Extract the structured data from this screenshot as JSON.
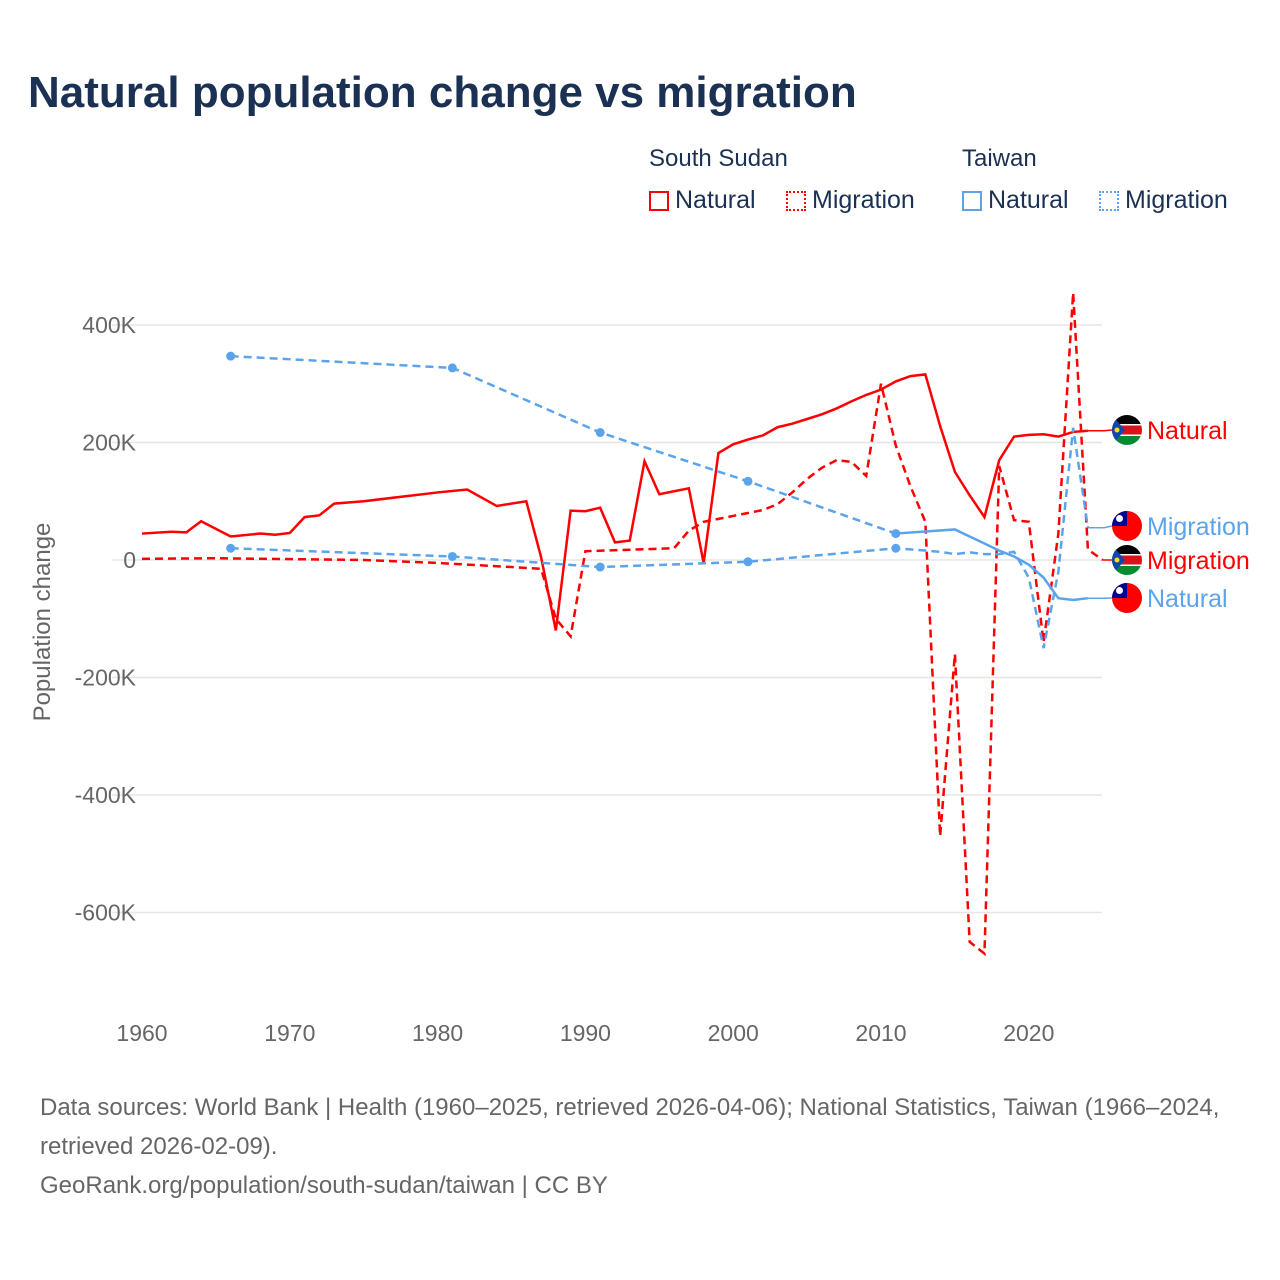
{
  "title": "Natural population change vs migration",
  "legend": {
    "groups": [
      {
        "name": "South Sudan",
        "color": "#ff0000",
        "items": [
          "Natural",
          "Migration"
        ]
      },
      {
        "name": "Taiwan",
        "color": "#5ba4ec",
        "items": [
          "Natural",
          "Migration"
        ]
      }
    ]
  },
  "footer": {
    "line1": "Data sources: World Bank | Health (1960–2025, retrieved 2026-04-06); National Statistics, Taiwan (1966–2024, retrieved 2026-02-09).",
    "line2": "GeoRank.org/population/south-sudan/taiwan | CC BY"
  },
  "chart_data": {
    "type": "line",
    "title": "Natural population change vs migration",
    "xlabel": "",
    "ylabel": "Population change",
    "xlim": [
      1960,
      2025
    ],
    "ylim": [
      -700000,
      460000
    ],
    "x_ticks": [
      "1960",
      "1970",
      "1980",
      "1990",
      "2000",
      "2010",
      "2020"
    ],
    "y_ticks": [
      {
        "v": 400000,
        "label": "400K"
      },
      {
        "v": 200000,
        "label": "200K"
      },
      {
        "v": 0,
        "label": "0"
      },
      {
        "v": -200000,
        "label": "-200K"
      },
      {
        "v": -400000,
        "label": "-400K"
      },
      {
        "v": -600000,
        "label": "-600K"
      }
    ],
    "grid": true,
    "legend_placement": "top-right",
    "series": [
      {
        "name": "South Sudan Natural",
        "end_label": "Natural",
        "color": "#ff0000",
        "dash": false,
        "markers": false,
        "x": [
          1960,
          1962,
          1963,
          1964,
          1966,
          1968,
          1969,
          1970,
          1971,
          1972,
          1973,
          1975,
          1980,
          1982,
          1984,
          1986,
          1987,
          1988,
          1989,
          1990,
          1991,
          1992,
          1993,
          1994,
          1995,
          1996,
          1997,
          1998,
          1999,
          2000,
          2001,
          2002,
          2003,
          2004,
          2005,
          2006,
          2007,
          2008,
          2009,
          2010,
          2011,
          2012,
          2013,
          2014,
          2015,
          2016,
          2017,
          2018,
          2019,
          2020,
          2021,
          2022,
          2023,
          2024
        ],
        "y": [
          45000,
          48000,
          47000,
          66000,
          40000,
          45000,
          43000,
          46000,
          73000,
          76000,
          96000,
          100000,
          115000,
          120000,
          92000,
          100000,
          5000,
          -120000,
          84000,
          83000,
          89000,
          30000,
          33000,
          168000,
          112000,
          117000,
          122000,
          -5000,
          182000,
          197000,
          205000,
          212000,
          226000,
          232000,
          240000,
          248000,
          258000,
          270000,
          281000,
          290000,
          304000,
          313000,
          316000,
          228000,
          150000,
          110000,
          73000,
          170000,
          210000,
          213000,
          214000,
          210000,
          218000,
          220000
        ]
      },
      {
        "name": "South Sudan Migration",
        "end_label": "Migration",
        "color": "#ff0000",
        "dash": true,
        "markers": false,
        "x": [
          1960,
          1965,
          1975,
          1980,
          1985,
          1987,
          1988,
          1989,
          1990,
          1996,
          1997,
          1998,
          1999,
          2000,
          2001,
          2002,
          2003,
          2004,
          2005,
          2006,
          2007,
          2008,
          2009,
          2010,
          2011,
          2012,
          2013,
          2014,
          2015,
          2016,
          2017,
          2018,
          2019,
          2020,
          2021,
          2022,
          2023,
          2024,
          2025
        ],
        "y": [
          2000,
          3000,
          0,
          -5000,
          -12000,
          -15000,
          -100000,
          -130000,
          15000,
          20000,
          50000,
          65000,
          70000,
          75000,
          80000,
          85000,
          95000,
          115000,
          138000,
          157000,
          170000,
          167000,
          143000,
          300000,
          195000,
          125000,
          65000,
          -470000,
          -160000,
          -650000,
          -670000,
          160000,
          68000,
          65000,
          -140000,
          45000,
          455000,
          18000,
          0
        ]
      },
      {
        "name": "Taiwan Natural",
        "end_label": "Natural",
        "color": "#5ba4ec",
        "dash": false,
        "markers": true,
        "dashed_until": 2011,
        "x": [
          1966,
          1981,
          1991,
          2001,
          2011,
          2015,
          2016,
          2017,
          2018,
          2019,
          2020,
          2021,
          2022,
          2023,
          2024
        ],
        "y": [
          347000,
          327000,
          217000,
          134000,
          45000,
          52000,
          40000,
          28000,
          16000,
          6000,
          -8000,
          -30000,
          -65000,
          -68000,
          -65000
        ]
      },
      {
        "name": "Taiwan Migration",
        "end_label": "Migration",
        "color": "#5ba4ec",
        "dash": true,
        "markers": true,
        "x": [
          1966,
          1981,
          1991,
          2001,
          2011,
          2014,
          2015,
          2016,
          2017,
          2018,
          2019,
          2020,
          2021,
          2022,
          2023,
          2024
        ],
        "y": [
          20000,
          6000,
          -12000,
          -3000,
          20000,
          14000,
          10000,
          13000,
          10000,
          10000,
          14000,
          -30000,
          -150000,
          -20000,
          225000,
          55000
        ]
      }
    ]
  }
}
